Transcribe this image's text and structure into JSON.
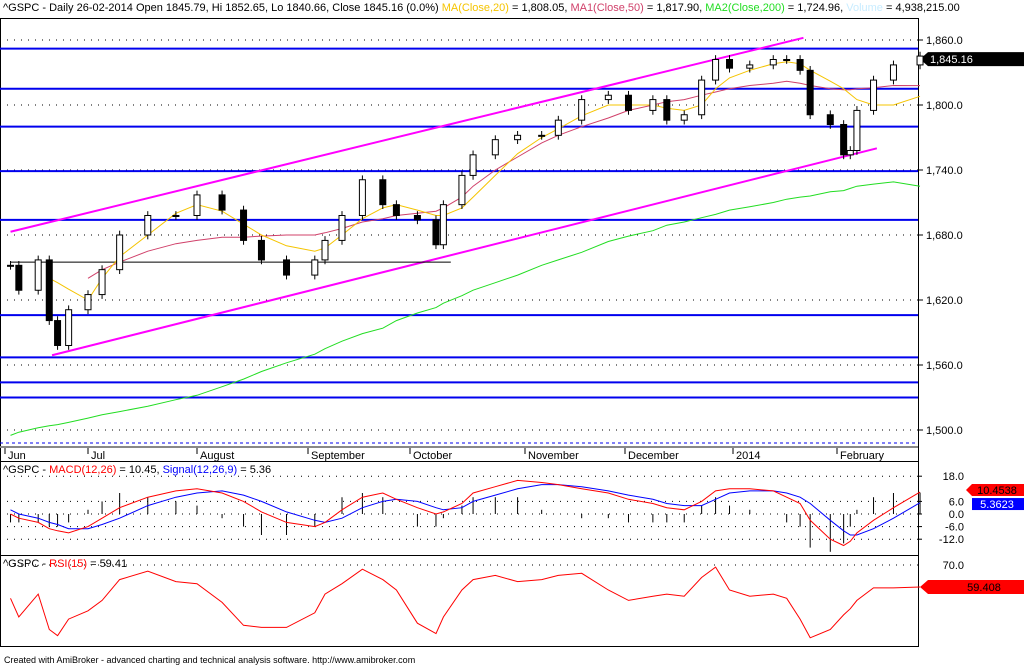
{
  "legend": {
    "symbol": "^GSPC",
    "price_prefix": "^GSPC - Daily 26-02-2014 Open 1845.79, Hi 1852.65, Lo 1840.66, Close 1845.16 (0.0%) ",
    "ma20_label": "MA(Close,20)",
    "ma20_value": " = 1,808.05, ",
    "ma50_label": "MA1(Close,50)",
    "ma50_value": " = 1,817.90, ",
    "ma200_label": "MA2(Close,200)",
    "ma200_value": " = 1,724.96, ",
    "volume_label": "Volume",
    "volume_value": " = 4,938,215.00",
    "macd_prefix": "^GSPC - ",
    "macd_label": "MACD(12,26)",
    "macd_value": " = 10.45, ",
    "signal_label": "Signal(12,26,9)",
    "signal_value": " = 5.36",
    "rsi_prefix": "^GSPC - ",
    "rsi_label": "RSI(15)",
    "rsi_value": " = 59.41"
  },
  "footer": "Created with AmiBroker - advanced charting and technical analysis software. http://www.amibroker.com",
  "colors": {
    "ma20": "#f5c400",
    "ma50": "#d0406a",
    "ma200": "#22dd22",
    "volume": "#c8ecff",
    "support": "#0000ee",
    "channel": "#ff00ff",
    "macd": "#ff0000",
    "signal": "#0000ff",
    "rsi": "#ff0000"
  },
  "chart_data": {
    "type": "candlestick",
    "x_tick_labels": [
      "Jun",
      "Jul",
      "August",
      "September",
      "October",
      "November",
      "December",
      "2014",
      "February"
    ],
    "price_axis": {
      "ticks": [
        "1,860.0",
        "1,800.0",
        "1,740.0",
        "1,680.0",
        "1,620.0",
        "1,560.0",
        "1,500.0"
      ],
      "tick_values": [
        1860,
        1800,
        1740,
        1680,
        1620,
        1560,
        1500
      ],
      "last_label": "1,845.16",
      "last_value": 1845.16
    },
    "macd_axis": {
      "ticks": [
        "18.0",
        "6.0",
        "0.0",
        "-6.0",
        "-12.0"
      ],
      "tick_values": [
        18,
        6,
        0,
        -6,
        -12
      ],
      "macd_last": "10.4538",
      "signal_last": "5.3623",
      "macd_last_value": 10.4538,
      "signal_last_value": 5.3623
    },
    "rsi_axis": {
      "ticks": [
        "70.0"
      ],
      "tick_values": [
        70
      ],
      "last_label": "59.408",
      "last_value": 59.408
    },
    "dates": [
      "2013-06-03",
      "2013-06-06",
      "2013-06-13",
      "2013-06-17",
      "2013-06-20",
      "2013-06-24",
      "2013-07-01",
      "2013-07-05",
      "2013-07-10",
      "2013-07-18",
      "2013-07-26",
      "2013-08-01",
      "2013-08-08",
      "2013-08-14",
      "2013-08-19",
      "2013-08-26",
      "2013-09-03",
      "2013-09-06",
      "2013-09-11",
      "2013-09-17",
      "2013-09-23",
      "2013-09-27",
      "2013-10-03",
      "2013-10-08",
      "2013-10-10",
      "2013-10-15",
      "2013-10-18",
      "2013-10-24",
      "2013-10-30",
      "2013-11-06",
      "2013-11-11",
      "2013-11-18",
      "2013-11-26",
      "2013-12-02",
      "2013-12-09",
      "2013-12-13",
      "2013-12-18",
      "2013-12-23",
      "2013-12-27",
      "2013-12-31",
      "2014-01-06",
      "2014-01-13",
      "2014-01-17",
      "2014-01-21",
      "2014-01-24",
      "2014-01-30",
      "2014-02-03",
      "2014-02-05",
      "2014-02-07",
      "2014-02-12",
      "2014-02-18",
      "2014-02-26"
    ],
    "close": [
      1652,
      1629,
      1657,
      1601,
      1578,
      1611,
      1625,
      1648,
      1680,
      1698,
      1698,
      1717,
      1703,
      1675,
      1657,
      1643,
      1657,
      1675,
      1698,
      1731,
      1708,
      1698,
      1694,
      1671,
      1708,
      1735,
      1754,
      1768,
      1772,
      1772,
      1786,
      1805,
      1809,
      1795,
      1805,
      1786,
      1791,
      1823,
      1842,
      1834,
      1837,
      1842,
      1842,
      1832,
      1791,
      1782,
      1754,
      1758,
      1795,
      1823,
      1837,
      1845.16
    ],
    "ma20": [
      null,
      null,
      null,
      1640,
      1636,
      1630,
      1620,
      1640,
      1660,
      1680,
      1700,
      1708,
      1702,
      1690,
      1680,
      1670,
      1665,
      1668,
      1680,
      1695,
      1705,
      1708,
      1703,
      1698,
      1698,
      1705,
      1715,
      1735,
      1755,
      1770,
      1778,
      1790,
      1800,
      1800,
      1800,
      1797,
      1795,
      1800,
      1815,
      1825,
      1832,
      1838,
      1840,
      1838,
      1832,
      1822,
      1815,
      1810,
      1805,
      1800,
      1800,
      1808.05
    ],
    "ma50": [
      null,
      null,
      null,
      null,
      null,
      null,
      1640,
      1648,
      1655,
      1665,
      1672,
      1675,
      1678,
      1678,
      1679,
      1680,
      1680,
      1682,
      1686,
      1692,
      1695,
      1698,
      1700,
      1702,
      1705,
      1715,
      1725,
      1740,
      1752,
      1765,
      1772,
      1780,
      1788,
      1795,
      1800,
      1803,
      1805,
      1809,
      1812,
      1815,
      1818,
      1820,
      1822,
      1820,
      1818,
      1815,
      1814,
      1814,
      1815,
      1816,
      1818,
      1817.9
    ],
    "ma200": [
      1495,
      1498,
      1502,
      1504,
      1505,
      1507,
      1511,
      1514,
      1517,
      1522,
      1528,
      1532,
      1540,
      1547,
      1554,
      1562,
      1570,
      1575,
      1582,
      1589,
      1594,
      1601,
      1608,
      1613,
      1617,
      1624,
      1629,
      1636,
      1643,
      1652,
      1657,
      1664,
      1674,
      1679,
      1684,
      1689,
      1692,
      1696,
      1699,
      1703,
      1706,
      1710,
      1713,
      1715,
      1716,
      1720,
      1721,
      1723,
      1725,
      1727,
      1729,
      1724.96
    ],
    "macd": [
      0,
      -2,
      -4,
      -7,
      -8,
      -9,
      -6,
      -2,
      3,
      8,
      11,
      12,
      10,
      6,
      1,
      -4,
      -6,
      -4,
      2,
      8,
      10,
      7,
      3,
      0,
      1,
      5,
      10,
      13,
      16,
      15,
      14,
      12,
      10,
      7,
      5,
      3,
      2,
      6,
      11,
      12,
      12,
      11,
      8,
      5,
      -3,
      -12,
      -15,
      -13,
      -9,
      -3,
      3,
      10.45
    ],
    "signal": [
      2,
      0,
      -2,
      -4,
      -5,
      -7,
      -7,
      -5,
      -2,
      4,
      8,
      10,
      11,
      9,
      6,
      1,
      -3,
      -4,
      -2,
      3,
      6,
      7,
      6,
      3,
      2,
      3,
      6,
      9,
      12,
      14,
      14,
      13,
      11,
      9,
      7,
      5,
      4,
      4,
      7,
      10,
      11,
      11,
      10,
      8,
      5,
      -3,
      -8,
      -10,
      -10,
      -7,
      -2,
      5.36
    ],
    "rsi": [
      54,
      45,
      56,
      39,
      36,
      44,
      48,
      53,
      63,
      67,
      62,
      61,
      52,
      41,
      40,
      40,
      47,
      56,
      61,
      68,
      63,
      58,
      42,
      37,
      45,
      58,
      63,
      65,
      62,
      63,
      65,
      66,
      58,
      53,
      55,
      56,
      55,
      64,
      69,
      58,
      55,
      56,
      54,
      44,
      35,
      39,
      46,
      49,
      53,
      59,
      59,
      59.41
    ],
    "support_levels": [
      1852,
      1815,
      1780,
      1739,
      1694,
      1606,
      1567,
      1544,
      1530
    ],
    "trendlines": [
      {
        "from": [
          "2013-06-03",
          1683
        ],
        "to": [
          "2014-01-22",
          1862
        ],
        "color": "channel"
      },
      {
        "from": [
          "2013-06-18",
          1569
        ],
        "to": [
          "2014-02-13",
          1760
        ],
        "color": "channel"
      },
      {
        "from": [
          "2013-06-03",
          1655
        ],
        "to": [
          "2013-10-12",
          1655
        ],
        "color": "black"
      }
    ],
    "grid": "dotted horizontal at tick values"
  }
}
